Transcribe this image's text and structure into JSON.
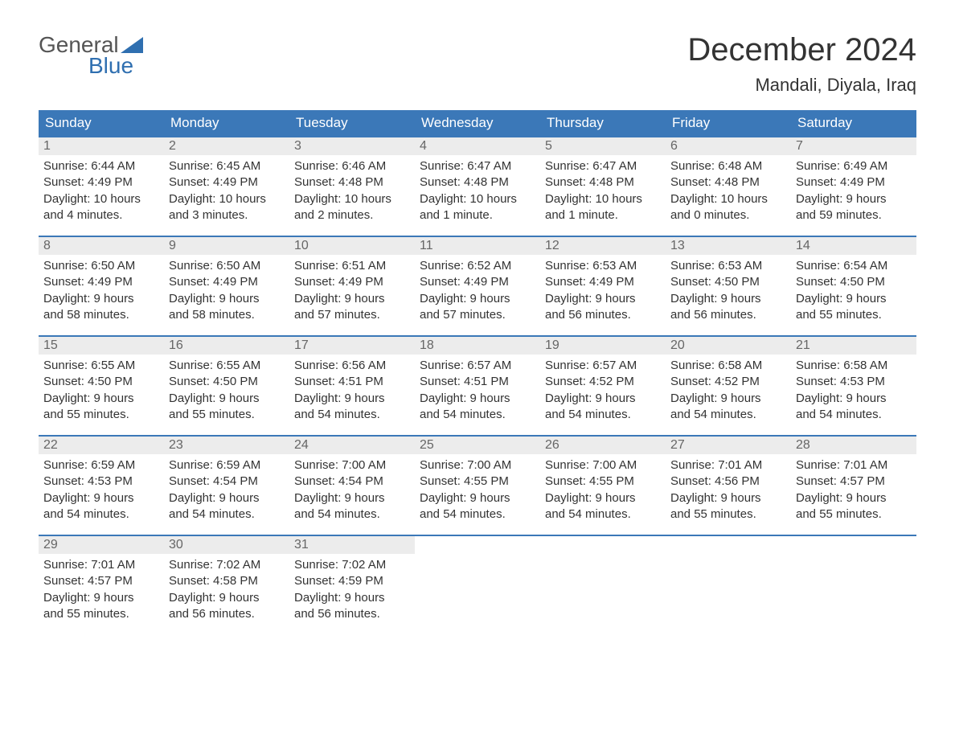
{
  "logo": {
    "word1": "General",
    "word2": "Blue",
    "icon_color": "#2f6fb0",
    "text_color_top": "#555555",
    "text_color_bottom": "#2f6fb0"
  },
  "title": "December 2024",
  "location": "Mandali, Diyala, Iraq",
  "colors": {
    "header_bg": "#3b78b8",
    "header_text": "#ffffff",
    "daynum_bg": "#ececec",
    "daynum_text": "#666666",
    "border": "#3b78b8",
    "body_text": "#333333",
    "background": "#ffffff"
  },
  "typography": {
    "title_fontsize": 40,
    "location_fontsize": 22,
    "dayheader_fontsize": 17,
    "cell_fontsize": 15
  },
  "day_names": [
    "Sunday",
    "Monday",
    "Tuesday",
    "Wednesday",
    "Thursday",
    "Friday",
    "Saturday"
  ],
  "weeks": [
    [
      {
        "n": "1",
        "sunrise": "Sunrise: 6:44 AM",
        "sunset": "Sunset: 4:49 PM",
        "daylight1": "Daylight: 10 hours",
        "daylight2": "and 4 minutes."
      },
      {
        "n": "2",
        "sunrise": "Sunrise: 6:45 AM",
        "sunset": "Sunset: 4:49 PM",
        "daylight1": "Daylight: 10 hours",
        "daylight2": "and 3 minutes."
      },
      {
        "n": "3",
        "sunrise": "Sunrise: 6:46 AM",
        "sunset": "Sunset: 4:48 PM",
        "daylight1": "Daylight: 10 hours",
        "daylight2": "and 2 minutes."
      },
      {
        "n": "4",
        "sunrise": "Sunrise: 6:47 AM",
        "sunset": "Sunset: 4:48 PM",
        "daylight1": "Daylight: 10 hours",
        "daylight2": "and 1 minute."
      },
      {
        "n": "5",
        "sunrise": "Sunrise: 6:47 AM",
        "sunset": "Sunset: 4:48 PM",
        "daylight1": "Daylight: 10 hours",
        "daylight2": "and 1 minute."
      },
      {
        "n": "6",
        "sunrise": "Sunrise: 6:48 AM",
        "sunset": "Sunset: 4:48 PM",
        "daylight1": "Daylight: 10 hours",
        "daylight2": "and 0 minutes."
      },
      {
        "n": "7",
        "sunrise": "Sunrise: 6:49 AM",
        "sunset": "Sunset: 4:49 PM",
        "daylight1": "Daylight: 9 hours",
        "daylight2": "and 59 minutes."
      }
    ],
    [
      {
        "n": "8",
        "sunrise": "Sunrise: 6:50 AM",
        "sunset": "Sunset: 4:49 PM",
        "daylight1": "Daylight: 9 hours",
        "daylight2": "and 58 minutes."
      },
      {
        "n": "9",
        "sunrise": "Sunrise: 6:50 AM",
        "sunset": "Sunset: 4:49 PM",
        "daylight1": "Daylight: 9 hours",
        "daylight2": "and 58 minutes."
      },
      {
        "n": "10",
        "sunrise": "Sunrise: 6:51 AM",
        "sunset": "Sunset: 4:49 PM",
        "daylight1": "Daylight: 9 hours",
        "daylight2": "and 57 minutes."
      },
      {
        "n": "11",
        "sunrise": "Sunrise: 6:52 AM",
        "sunset": "Sunset: 4:49 PM",
        "daylight1": "Daylight: 9 hours",
        "daylight2": "and 57 minutes."
      },
      {
        "n": "12",
        "sunrise": "Sunrise: 6:53 AM",
        "sunset": "Sunset: 4:49 PM",
        "daylight1": "Daylight: 9 hours",
        "daylight2": "and 56 minutes."
      },
      {
        "n": "13",
        "sunrise": "Sunrise: 6:53 AM",
        "sunset": "Sunset: 4:50 PM",
        "daylight1": "Daylight: 9 hours",
        "daylight2": "and 56 minutes."
      },
      {
        "n": "14",
        "sunrise": "Sunrise: 6:54 AM",
        "sunset": "Sunset: 4:50 PM",
        "daylight1": "Daylight: 9 hours",
        "daylight2": "and 55 minutes."
      }
    ],
    [
      {
        "n": "15",
        "sunrise": "Sunrise: 6:55 AM",
        "sunset": "Sunset: 4:50 PM",
        "daylight1": "Daylight: 9 hours",
        "daylight2": "and 55 minutes."
      },
      {
        "n": "16",
        "sunrise": "Sunrise: 6:55 AM",
        "sunset": "Sunset: 4:50 PM",
        "daylight1": "Daylight: 9 hours",
        "daylight2": "and 55 minutes."
      },
      {
        "n": "17",
        "sunrise": "Sunrise: 6:56 AM",
        "sunset": "Sunset: 4:51 PM",
        "daylight1": "Daylight: 9 hours",
        "daylight2": "and 54 minutes."
      },
      {
        "n": "18",
        "sunrise": "Sunrise: 6:57 AM",
        "sunset": "Sunset: 4:51 PM",
        "daylight1": "Daylight: 9 hours",
        "daylight2": "and 54 minutes."
      },
      {
        "n": "19",
        "sunrise": "Sunrise: 6:57 AM",
        "sunset": "Sunset: 4:52 PM",
        "daylight1": "Daylight: 9 hours",
        "daylight2": "and 54 minutes."
      },
      {
        "n": "20",
        "sunrise": "Sunrise: 6:58 AM",
        "sunset": "Sunset: 4:52 PM",
        "daylight1": "Daylight: 9 hours",
        "daylight2": "and 54 minutes."
      },
      {
        "n": "21",
        "sunrise": "Sunrise: 6:58 AM",
        "sunset": "Sunset: 4:53 PM",
        "daylight1": "Daylight: 9 hours",
        "daylight2": "and 54 minutes."
      }
    ],
    [
      {
        "n": "22",
        "sunrise": "Sunrise: 6:59 AM",
        "sunset": "Sunset: 4:53 PM",
        "daylight1": "Daylight: 9 hours",
        "daylight2": "and 54 minutes."
      },
      {
        "n": "23",
        "sunrise": "Sunrise: 6:59 AM",
        "sunset": "Sunset: 4:54 PM",
        "daylight1": "Daylight: 9 hours",
        "daylight2": "and 54 minutes."
      },
      {
        "n": "24",
        "sunrise": "Sunrise: 7:00 AM",
        "sunset": "Sunset: 4:54 PM",
        "daylight1": "Daylight: 9 hours",
        "daylight2": "and 54 minutes."
      },
      {
        "n": "25",
        "sunrise": "Sunrise: 7:00 AM",
        "sunset": "Sunset: 4:55 PM",
        "daylight1": "Daylight: 9 hours",
        "daylight2": "and 54 minutes."
      },
      {
        "n": "26",
        "sunrise": "Sunrise: 7:00 AM",
        "sunset": "Sunset: 4:55 PM",
        "daylight1": "Daylight: 9 hours",
        "daylight2": "and 54 minutes."
      },
      {
        "n": "27",
        "sunrise": "Sunrise: 7:01 AM",
        "sunset": "Sunset: 4:56 PM",
        "daylight1": "Daylight: 9 hours",
        "daylight2": "and 55 minutes."
      },
      {
        "n": "28",
        "sunrise": "Sunrise: 7:01 AM",
        "sunset": "Sunset: 4:57 PM",
        "daylight1": "Daylight: 9 hours",
        "daylight2": "and 55 minutes."
      }
    ],
    [
      {
        "n": "29",
        "sunrise": "Sunrise: 7:01 AM",
        "sunset": "Sunset: 4:57 PM",
        "daylight1": "Daylight: 9 hours",
        "daylight2": "and 55 minutes."
      },
      {
        "n": "30",
        "sunrise": "Sunrise: 7:02 AM",
        "sunset": "Sunset: 4:58 PM",
        "daylight1": "Daylight: 9 hours",
        "daylight2": "and 56 minutes."
      },
      {
        "n": "31",
        "sunrise": "Sunrise: 7:02 AM",
        "sunset": "Sunset: 4:59 PM",
        "daylight1": "Daylight: 9 hours",
        "daylight2": "and 56 minutes."
      },
      {
        "n": "",
        "sunrise": "",
        "sunset": "",
        "daylight1": "",
        "daylight2": ""
      },
      {
        "n": "",
        "sunrise": "",
        "sunset": "",
        "daylight1": "",
        "daylight2": ""
      },
      {
        "n": "",
        "sunrise": "",
        "sunset": "",
        "daylight1": "",
        "daylight2": ""
      },
      {
        "n": "",
        "sunrise": "",
        "sunset": "",
        "daylight1": "",
        "daylight2": ""
      }
    ]
  ]
}
